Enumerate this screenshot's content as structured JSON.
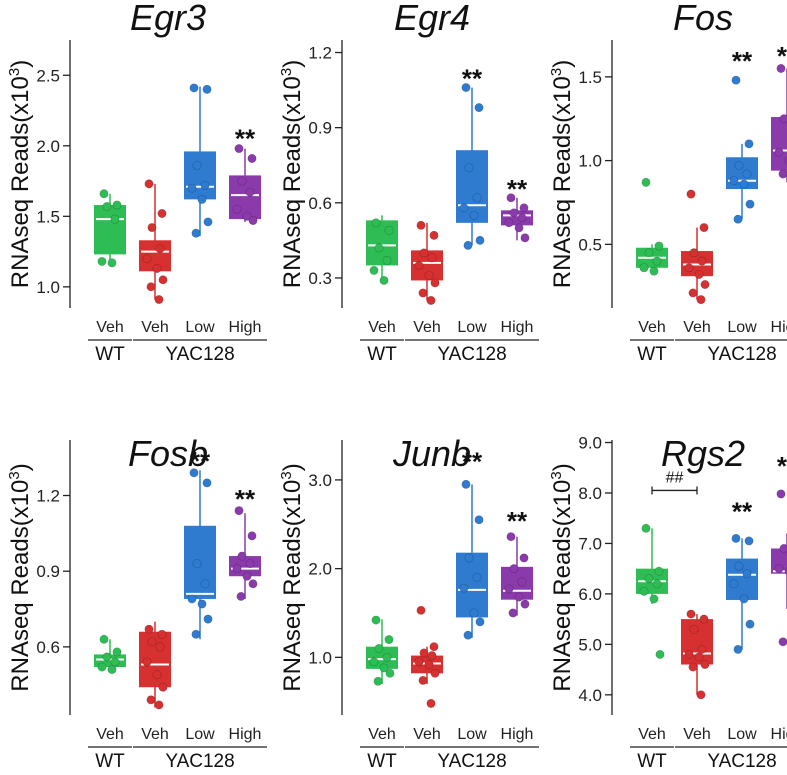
{
  "colors": {
    "wt_veh": "#2ebd55",
    "yac_veh": "#d63030",
    "yac_low": "#2e7bd0",
    "yac_high": "#8a3aab"
  },
  "chart_data": [
    {
      "type": "box",
      "title": "Egr3",
      "ylabel": "RNAseq Reads(x10",
      "ylabel_exp": "3",
      "ylabel_close": ")",
      "ylim": [
        0.85,
        2.75
      ],
      "ticks": [
        1.0,
        1.5,
        2.0,
        2.5
      ],
      "tick_labels": [
        "1.0",
        "1.5",
        "2.0",
        "2.5"
      ],
      "categories": [
        "Veh",
        "Veh",
        "Low",
        "High"
      ],
      "groups": [
        "WT",
        "YAC128"
      ],
      "series": [
        {
          "name": "WT Veh",
          "color": "#2ebd55",
          "q1": 1.23,
          "median": 1.48,
          "q3": 1.58,
          "whisker_low": 1.15,
          "whisker_high": 1.66,
          "points": [
            1.66,
            1.58,
            1.57,
            1.48,
            1.18,
            1.17
          ]
        },
        {
          "name": "YAC128 Veh",
          "color": "#d63030",
          "q1": 1.11,
          "median": 1.25,
          "q3": 1.33,
          "whisker_low": 0.91,
          "whisker_high": 1.73,
          "points": [
            1.73,
            1.52,
            1.42,
            1.27,
            1.2,
            1.13,
            1.05,
            1.0,
            0.91
          ]
        },
        {
          "name": "YAC128 Low",
          "color": "#2e7bd0",
          "q1": 1.62,
          "median": 1.71,
          "q3": 1.96,
          "whisker_low": 1.36,
          "whisker_high": 2.42,
          "points": [
            2.41,
            2.4,
            1.86,
            1.72,
            1.7,
            1.62,
            1.46,
            1.38
          ]
        },
        {
          "name": "YAC128 High",
          "color": "#8a3aab",
          "q1": 1.48,
          "median": 1.65,
          "q3": 1.79,
          "whisker_low": 1.46,
          "whisker_high": 1.98,
          "points": [
            1.98,
            1.91,
            1.75,
            1.67,
            1.55,
            1.5,
            1.47
          ]
        }
      ],
      "annotations": [
        {
          "category": 3,
          "text": "**",
          "y": 2.06
        }
      ]
    },
    {
      "type": "box",
      "title": "Egr4",
      "ylabel": "RNAseq Reads(x10",
      "ylabel_exp": "3",
      "ylabel_close": ")",
      "ylim": [
        0.18,
        1.25
      ],
      "ticks": [
        0.3,
        0.6,
        0.9,
        1.2
      ],
      "tick_labels": [
        "0.3",
        "0.6",
        "0.9",
        "1.2"
      ],
      "categories": [
        "Veh",
        "Veh",
        "Low",
        "High"
      ],
      "groups": [
        "WT",
        "YAC128"
      ],
      "series": [
        {
          "name": "WT Veh",
          "color": "#2ebd55",
          "q1": 0.35,
          "median": 0.43,
          "q3": 0.53,
          "whisker_low": 0.28,
          "whisker_high": 0.55,
          "points": [
            0.52,
            0.49,
            0.42,
            0.37,
            0.33,
            0.29
          ]
        },
        {
          "name": "YAC128 Veh",
          "color": "#d63030",
          "q1": 0.29,
          "median": 0.36,
          "q3": 0.41,
          "whisker_low": 0.21,
          "whisker_high": 0.52,
          "points": [
            0.51,
            0.47,
            0.4,
            0.38,
            0.35,
            0.31,
            0.28,
            0.24,
            0.21
          ]
        },
        {
          "name": "YAC128 Low",
          "color": "#2e7bd0",
          "q1": 0.52,
          "median": 0.59,
          "q3": 0.81,
          "whisker_low": 0.43,
          "whisker_high": 1.06,
          "points": [
            1.06,
            0.98,
            0.74,
            0.62,
            0.58,
            0.55,
            0.45,
            0.43
          ]
        },
        {
          "name": "YAC128 High",
          "color": "#8a3aab",
          "q1": 0.51,
          "median": 0.55,
          "q3": 0.57,
          "whisker_low": 0.45,
          "whisker_high": 0.62,
          "points": [
            0.62,
            0.58,
            0.56,
            0.54,
            0.52,
            0.5,
            0.46
          ]
        }
      ],
      "annotations": [
        {
          "category": 2,
          "text": "**",
          "y": 1.1
        },
        {
          "category": 3,
          "text": "**",
          "y": 0.66
        }
      ]
    },
    {
      "type": "box",
      "title": "Fos",
      "ylabel": "RNAseq Reads(x10",
      "ylabel_exp": "3",
      "ylabel_close": ")",
      "ylim": [
        0.12,
        1.72
      ],
      "ticks": [
        0.5,
        1.0,
        1.5
      ],
      "tick_labels": [
        "0.5",
        "1.0",
        "1.5"
      ],
      "categories": [
        "Veh",
        "Veh",
        "Low",
        "High"
      ],
      "groups": [
        "WT",
        "YAC128"
      ],
      "series": [
        {
          "name": "WT Veh",
          "color": "#2ebd55",
          "q1": 0.36,
          "median": 0.42,
          "q3": 0.48,
          "whisker_low": 0.33,
          "whisker_high": 0.5,
          "points": [
            0.87,
            0.49,
            0.45,
            0.4,
            0.36,
            0.34
          ]
        },
        {
          "name": "YAC128 Veh",
          "color": "#d63030",
          "q1": 0.31,
          "median": 0.38,
          "q3": 0.46,
          "whisker_low": 0.17,
          "whisker_high": 0.6,
          "points": [
            0.8,
            0.6,
            0.45,
            0.4,
            0.36,
            0.32,
            0.26,
            0.21,
            0.17
          ]
        },
        {
          "name": "YAC128 Low",
          "color": "#2e7bd0",
          "q1": 0.83,
          "median": 0.88,
          "q3": 1.02,
          "whisker_low": 0.65,
          "whisker_high": 1.1,
          "points": [
            1.48,
            1.1,
            0.97,
            0.92,
            0.88,
            0.86,
            0.74,
            0.65
          ]
        },
        {
          "name": "YAC128 High",
          "color": "#8a3aab",
          "q1": 0.94,
          "median": 1.06,
          "q3": 1.26,
          "whisker_low": 0.87,
          "whisker_high": 1.55,
          "points": [
            1.55,
            1.46,
            1.25,
            1.22,
            1.05,
            1.0,
            0.96,
            0.92,
            0.9
          ]
        }
      ],
      "annotations": [
        {
          "category": 2,
          "text": "**",
          "y": 1.6
        },
        {
          "category": 3,
          "text": "**",
          "y": 1.63
        }
      ]
    },
    {
      "type": "box",
      "title": "Fosb",
      "ylabel": "RNAseq Reads(x10",
      "ylabel_exp": "3",
      "ylabel_close": ")",
      "ylim": [
        0.33,
        1.42
      ],
      "ticks": [
        0.6,
        0.9,
        1.2
      ],
      "tick_labels": [
        "0.6",
        "0.9",
        "1.2"
      ],
      "categories": [
        "Veh",
        "Veh",
        "Low",
        "High"
      ],
      "groups": [
        "WT",
        "YAC128"
      ],
      "series": [
        {
          "name": "WT Veh",
          "color": "#2ebd55",
          "q1": 0.52,
          "median": 0.55,
          "q3": 0.57,
          "whisker_low": 0.5,
          "whisker_high": 0.63,
          "points": [
            0.63,
            0.58,
            0.56,
            0.54,
            0.52,
            0.51
          ]
        },
        {
          "name": "YAC128 Veh",
          "color": "#d63030",
          "q1": 0.44,
          "median": 0.53,
          "q3": 0.66,
          "whisker_low": 0.36,
          "whisker_high": 0.7,
          "points": [
            0.67,
            0.65,
            0.62,
            0.6,
            0.54,
            0.49,
            0.44,
            0.39,
            0.37
          ]
        },
        {
          "name": "YAC128 Low",
          "color": "#2e7bd0",
          "q1": 0.79,
          "median": 0.81,
          "q3": 1.08,
          "whisker_low": 0.63,
          "whisker_high": 1.3,
          "points": [
            1.29,
            1.25,
            0.93,
            0.85,
            0.79,
            0.77,
            0.71,
            0.65
          ]
        },
        {
          "name": "YAC128 High",
          "color": "#8a3aab",
          "q1": 0.88,
          "median": 0.91,
          "q3": 0.96,
          "whisker_low": 0.79,
          "whisker_high": 1.13,
          "points": [
            1.14,
            1.04,
            0.96,
            0.93,
            0.91,
            0.88,
            0.85,
            0.8
          ]
        }
      ],
      "annotations": [
        {
          "category": 2,
          "text": "**",
          "y": 1.34
        },
        {
          "category": 3,
          "text": "**",
          "y": 1.19
        }
      ]
    },
    {
      "type": "box",
      "title": "Junb",
      "ylabel": "RNAseq Reads(x10",
      "ylabel_exp": "3",
      "ylabel_close": ")",
      "ylim": [
        0.35,
        3.45
      ],
      "ticks": [
        1.0,
        2.0,
        3.0
      ],
      "tick_labels": [
        "1.0",
        "2.0",
        "3.0"
      ],
      "categories": [
        "Veh",
        "Veh",
        "Low",
        "High"
      ],
      "groups": [
        "WT",
        "YAC128"
      ],
      "series": [
        {
          "name": "WT Veh",
          "color": "#2ebd55",
          "q1": 0.87,
          "median": 0.98,
          "q3": 1.12,
          "whisker_low": 0.7,
          "whisker_high": 1.43,
          "points": [
            1.42,
            1.2,
            1.1,
            1.0,
            0.95,
            0.88,
            0.82,
            0.73
          ]
        },
        {
          "name": "YAC128 Veh",
          "color": "#d63030",
          "q1": 0.82,
          "median": 0.93,
          "q3": 1.02,
          "whisker_low": 0.7,
          "whisker_high": 1.12,
          "points": [
            1.53,
            1.12,
            1.05,
            1.02,
            0.95,
            0.92,
            0.82,
            0.74,
            0.48
          ]
        },
        {
          "name": "YAC128 Low",
          "color": "#2e7bd0",
          "q1": 1.45,
          "median": 1.76,
          "q3": 2.18,
          "whisker_low": 1.22,
          "whisker_high": 2.95,
          "points": [
            2.95,
            2.55,
            2.12,
            1.9,
            1.78,
            1.5,
            1.4,
            1.25
          ]
        },
        {
          "name": "YAC128 High",
          "color": "#8a3aab",
          "q1": 1.65,
          "median": 1.75,
          "q3": 2.02,
          "whisker_low": 1.47,
          "whisker_high": 2.36,
          "points": [
            2.36,
            2.12,
            2.0,
            1.85,
            1.77,
            1.68,
            1.6,
            1.5
          ]
        }
      ],
      "annotations": [
        {
          "category": 2,
          "text": "**",
          "y": 3.22
        },
        {
          "category": 3,
          "text": "**",
          "y": 2.55
        }
      ]
    },
    {
      "type": "box",
      "title": "Rgs2",
      "ylabel": "RNAseq Reads(x10",
      "ylabel_exp": "3",
      "ylabel_close": ")",
      "ylim": [
        3.6,
        9.05
      ],
      "ticks": [
        4.0,
        5.0,
        6.0,
        7.0,
        8.0,
        9.0
      ],
      "tick_labels": [
        "4.0",
        "5.0",
        "6.0",
        "7.0",
        "8.0",
        "9.0"
      ],
      "categories": [
        "Veh",
        "Veh",
        "Low",
        "High"
      ],
      "groups": [
        "WT",
        "YAC128"
      ],
      "series": [
        {
          "name": "WT Veh",
          "color": "#2ebd55",
          "q1": 6.0,
          "median": 6.25,
          "q3": 6.5,
          "whisker_low": 5.8,
          "whisker_high": 7.3,
          "points": [
            7.3,
            6.45,
            6.3,
            6.2,
            6.05,
            5.9,
            4.8
          ]
        },
        {
          "name": "YAC128 Veh",
          "color": "#d63030",
          "q1": 4.6,
          "median": 4.82,
          "q3": 5.5,
          "whisker_low": 4.0,
          "whisker_high": 5.6,
          "points": [
            5.6,
            5.5,
            5.3,
            4.9,
            4.8,
            4.75,
            4.6,
            4.55,
            4.0
          ]
        },
        {
          "name": "YAC128 Low",
          "color": "#2e7bd0",
          "q1": 5.88,
          "median": 6.38,
          "q3": 6.7,
          "whisker_low": 4.9,
          "whisker_high": 7.1,
          "points": [
            7.1,
            7.05,
            6.55,
            6.4,
            6.2,
            5.9,
            5.4,
            4.9
          ]
        },
        {
          "name": "YAC128 High",
          "color": "#8a3aab",
          "q1": 6.4,
          "median": 6.45,
          "q3": 6.9,
          "whisker_low": 5.7,
          "whisker_high": 7.2,
          "points": [
            7.98,
            7.2,
            6.9,
            6.6,
            6.5,
            6.45,
            6.42,
            5.05
          ]
        }
      ],
      "annotations": [
        {
          "category": 2,
          "text": "**",
          "y": 7.65
        },
        {
          "category": 3,
          "text": "**",
          "y": 8.55
        }
      ],
      "bracket": {
        "from": 0,
        "to": 1,
        "y": 8.05,
        "label": "##"
      }
    }
  ]
}
